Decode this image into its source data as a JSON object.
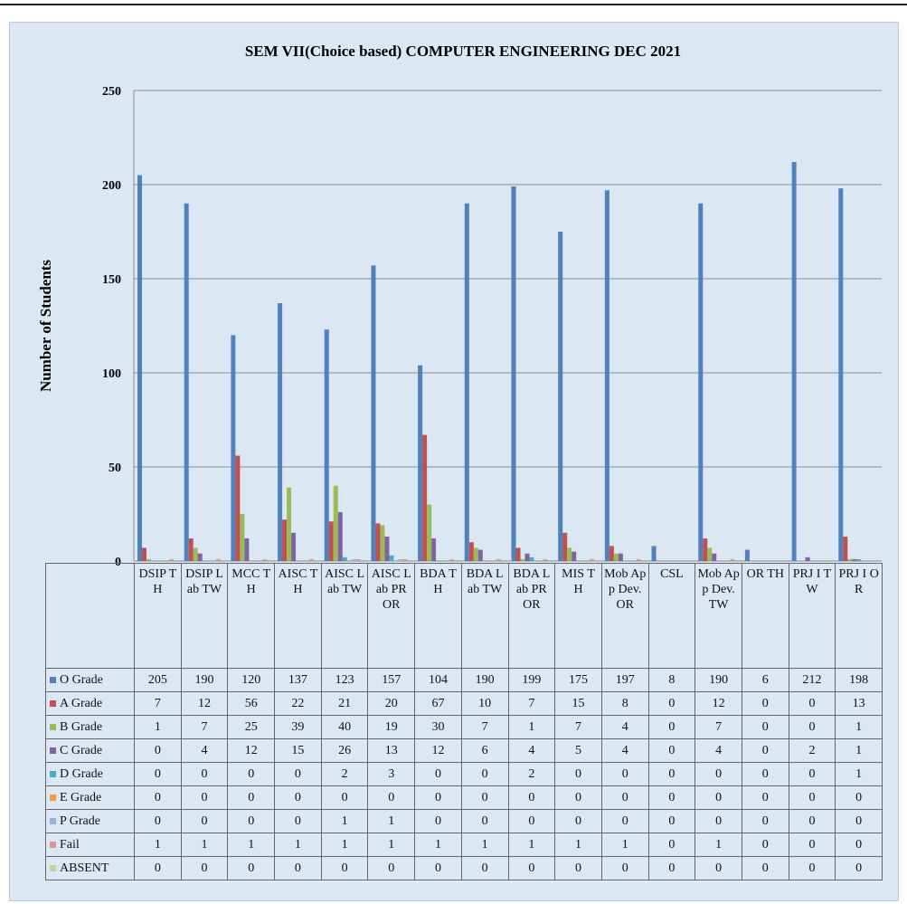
{
  "chart_data": {
    "type": "bar",
    "title": "SEM VII(Choice based) COMPUTER ENGINEERING DEC 2021",
    "y_label": "Number of Students",
    "categories": [
      "DSIP TH",
      "DSIP Lab TW",
      "MCC TH",
      "AISC TH",
      "AISC Lab TW",
      "AISC Lab PR OR",
      "BDA TH",
      "BDA Lab TW",
      "BDA Lab PR OR",
      "MIS TH",
      "Mob App Dev. OR",
      "CSL",
      "Mob App Dev. TW",
      "OR TH",
      "PRJ I TW",
      "PRJ I OR"
    ],
    "series": [
      {
        "name": "O Grade",
        "color": "#4f81bd",
        "values": [
          205,
          190,
          120,
          137,
          123,
          157,
          104,
          190,
          199,
          175,
          197,
          8,
          190,
          6,
          212,
          198
        ]
      },
      {
        "name": "A Grade",
        "color": "#c0504d",
        "values": [
          7,
          12,
          56,
          22,
          21,
          20,
          67,
          10,
          7,
          15,
          8,
          0,
          12,
          0,
          0,
          13
        ]
      },
      {
        "name": "B Grade",
        "color": "#9bbb59",
        "values": [
          1,
          7,
          25,
          39,
          40,
          19,
          30,
          7,
          1,
          7,
          4,
          0,
          7,
          0,
          0,
          1
        ]
      },
      {
        "name": "C Grade",
        "color": "#8064a2",
        "values": [
          0,
          4,
          12,
          15,
          26,
          13,
          12,
          6,
          4,
          5,
          4,
          0,
          4,
          0,
          2,
          1
        ]
      },
      {
        "name": "D Grade",
        "color": "#4bacc6",
        "values": [
          0,
          0,
          0,
          0,
          2,
          3,
          0,
          0,
          2,
          0,
          0,
          0,
          0,
          0,
          0,
          1
        ]
      },
      {
        "name": "E Grade",
        "color": "#f79646",
        "values": [
          0,
          0,
          0,
          0,
          0,
          0,
          0,
          0,
          0,
          0,
          0,
          0,
          0,
          0,
          0,
          0
        ]
      },
      {
        "name": "P Grade",
        "color": "#95b3d7",
        "values": [
          0,
          0,
          0,
          0,
          1,
          1,
          0,
          0,
          0,
          0,
          0,
          0,
          0,
          0,
          0,
          0
        ]
      },
      {
        "name": "Fail",
        "color": "#d99694",
        "values": [
          1,
          1,
          1,
          1,
          1,
          1,
          1,
          1,
          1,
          1,
          1,
          0,
          1,
          0,
          0,
          0
        ]
      },
      {
        "name": "ABSENT",
        "color": "#c3d69b",
        "values": [
          0,
          0,
          0,
          0,
          0,
          0,
          0,
          0,
          0,
          0,
          0,
          0,
          0,
          0,
          0,
          0
        ]
      }
    ],
    "ylim": [
      0,
      250
    ],
    "yticks": [
      0,
      50,
      100,
      150,
      200,
      250
    ],
    "grid": true
  }
}
